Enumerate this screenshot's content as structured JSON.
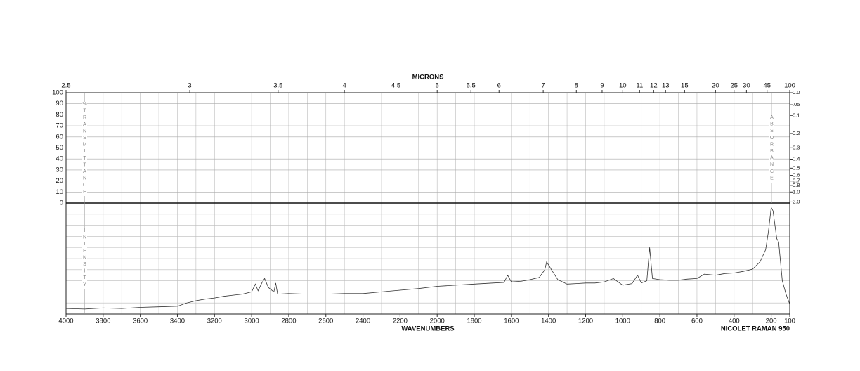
{
  "chart_data": {
    "type": "line",
    "top_label": "MICRONS",
    "x_label": "WAVENUMBERS",
    "instrument": "NICOLET RAMAN 950",
    "left_label": "%TRANSMITTANCE",
    "lower_left_label": "INTENSITY",
    "right_label": "ABSORBANCE",
    "xlim": [
      4000,
      100
    ],
    "xticks": [
      4000,
      3800,
      3600,
      3400,
      3200,
      3000,
      2800,
      2600,
      2400,
      2200,
      2000,
      1800,
      1600,
      1400,
      1200,
      1000,
      800,
      600,
      400,
      200,
      100
    ],
    "micron_ticks": [
      2.5,
      3,
      3.5,
      4,
      4.5,
      5,
      5.5,
      6,
      7,
      8,
      9,
      10,
      11,
      12,
      13,
      15,
      20,
      25,
      30,
      45,
      100
    ],
    "ylim": [
      0,
      100
    ],
    "yticks": [
      0,
      10,
      20,
      30,
      40,
      50,
      60,
      70,
      80,
      90,
      100
    ],
    "absorbance_ticks": [
      {
        "value": 0,
        "label": "0.0"
      },
      {
        "value": 0.05,
        "label": ".05"
      },
      0.1,
      0.2,
      0.3,
      0.4,
      0.5,
      0.6,
      0.7,
      0.8,
      {
        "value": 1,
        "label": "1.0"
      },
      {
        "value": 2,
        "label": "2.0"
      }
    ],
    "intensity_lim": [
      0,
      100
    ],
    "color": "#333333",
    "x": [
      4000,
      3900,
      3800,
      3700,
      3600,
      3500,
      3400,
      3350,
      3300,
      3250,
      3200,
      3150,
      3100,
      3050,
      3000,
      2980,
      2965,
      2945,
      2930,
      2910,
      2880,
      2870,
      2860,
      2800,
      2700,
      2600,
      2500,
      2400,
      2300,
      2200,
      2100,
      2000,
      1900,
      1800,
      1700,
      1640,
      1620,
      1600,
      1550,
      1500,
      1450,
      1420,
      1410,
      1380,
      1350,
      1300,
      1250,
      1200,
      1150,
      1100,
      1050,
      1000,
      950,
      920,
      900,
      870,
      855,
      840,
      800,
      750,
      700,
      650,
      600,
      560,
      500,
      450,
      400,
      350,
      300,
      260,
      230,
      215,
      200,
      190,
      170,
      160,
      140,
      120,
      100
    ],
    "values": [
      5,
      4.5,
      5.5,
      5,
      6,
      6.5,
      7,
      10,
      12,
      13.5,
      14.5,
      16,
      17,
      18,
      20,
      27,
      21,
      28,
      32,
      24,
      20,
      28,
      18,
      18.5,
      18,
      18,
      18.5,
      18.5,
      20,
      21.5,
      23,
      25,
      26,
      27,
      28,
      28.5,
      35,
      29,
      29.5,
      31,
      33,
      40,
      47,
      39,
      31,
      27,
      27.5,
      28,
      28,
      29,
      32,
      26,
      27.5,
      35,
      28,
      30,
      60,
      32,
      31,
      30.5,
      30.5,
      31.5,
      32,
      36,
      35,
      36.5,
      37,
      38.5,
      40.5,
      47,
      58,
      74,
      96,
      93,
      68,
      65,
      30,
      18,
      9
    ]
  }
}
